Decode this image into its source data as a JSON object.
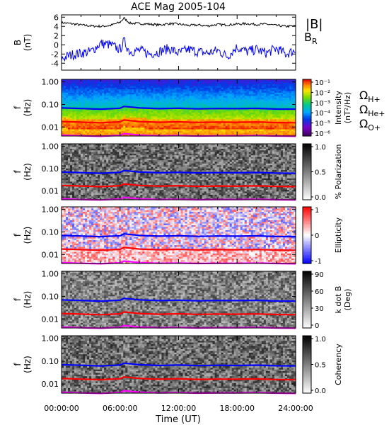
{
  "chart_data": {
    "title": "ACE Mag 2005-104",
    "type": "line",
    "xlabel": "Time (UT)",
    "xlim": [
      0,
      24
    ],
    "xticks": [
      "00:00:00",
      "06:00:00",
      "12:00:00",
      "18:00:00",
      "24:00:00"
    ],
    "panels": [
      {
        "id": "mag",
        "type": "line",
        "ylabel": "B",
        "yunit": "(nT)",
        "ylim": [
          -5.5,
          6.5
        ],
        "yticks": [
          "6",
          "4",
          "2",
          "0",
          "-2",
          "-4"
        ],
        "series": [
          {
            "name": "|B|",
            "color": "#000000",
            "x": [
              0,
              1,
              2,
              3,
              4,
              5,
              6,
              6.4,
              7,
              8,
              9,
              10,
              11,
              12,
              13,
              14,
              15,
              16,
              17,
              18,
              19,
              20,
              21,
              22,
              23,
              24
            ],
            "values": [
              4.8,
              4.6,
              4.3,
              4.1,
              4.0,
              4.2,
              4.9,
              5.8,
              4.7,
              4.6,
              4.5,
              4.3,
              4.6,
              4.5,
              4.2,
              4.3,
              4.1,
              4.4,
              4.3,
              4.5,
              4.6,
              4.4,
              4.5,
              4.2,
              4.0,
              4.1
            ]
          },
          {
            "name": "B",
            "subscript": "R",
            "color": "#0000ff",
            "x": [
              0,
              1,
              2,
              3,
              4,
              5,
              6,
              6.4,
              7,
              8,
              9,
              10,
              11,
              12,
              13,
              14,
              15,
              16,
              17,
              18,
              19,
              20,
              21,
              22,
              23,
              24
            ],
            "values": [
              -3.0,
              -2.2,
              -1.8,
              -1.5,
              0.3,
              0.0,
              -1.0,
              0.8,
              -1.5,
              -1.2,
              -2.0,
              -1.5,
              -0.8,
              -1.8,
              -1.0,
              -1.5,
              -1.8,
              -1.2,
              -2.5,
              -0.5,
              -1.5,
              -1.0,
              -1.8,
              -0.8,
              -2.0,
              -1.2
            ]
          }
        ]
      },
      {
        "id": "power",
        "type": "heatmap",
        "ylabel": "f",
        "yunit": "(Hz)",
        "ylim": [
          0.004,
          1.3
        ],
        "yscale": "log",
        "yticks": [
          "1.00",
          "0.10",
          "0.01"
        ],
        "colorbar": {
          "label": "Intensity",
          "unit": "(nT²/Hz)",
          "scale": "log",
          "ticks": [
            "10⁻¹",
            "10⁻²",
            "10⁻³",
            "10⁻⁴",
            "10⁻⁵",
            "10⁻⁶"
          ],
          "range": [
            1e-06,
            0.3
          ],
          "colormap": "rainbow"
        }
      },
      {
        "id": "polarization",
        "type": "heatmap",
        "ylabel": "f",
        "yunit": "(Hz)",
        "ylim": [
          0.004,
          1.3
        ],
        "yscale": "log",
        "yticks": [
          "1.00",
          "0.10",
          "0.01"
        ],
        "colorbar": {
          "label": "% Polarization",
          "ticks": [
            "1.0",
            "0.5",
            "0.0"
          ],
          "range": [
            0,
            1
          ],
          "colormap": "grey"
        }
      },
      {
        "id": "ellipticity",
        "type": "heatmap",
        "ylabel": "f",
        "yunit": "(Hz)",
        "ylim": [
          0.004,
          1.3
        ],
        "yscale": "log",
        "yticks": [
          "1.00",
          "0.10",
          "0.01"
        ],
        "colorbar": {
          "label": "Ellipticity",
          "ticks": [
            "1",
            "0",
            "-1"
          ],
          "range": [
            -1,
            1
          ],
          "colormap": "blue-white-red"
        }
      },
      {
        "id": "kdotb",
        "type": "heatmap",
        "ylabel": "f",
        "yunit": "(Hz)",
        "ylim": [
          0.004,
          1.3
        ],
        "yscale": "log",
        "yticks": [
          "1.00",
          "0.10",
          "0.01"
        ],
        "colorbar": {
          "label": "k dot B",
          "unit": "(Deg)",
          "ticks": [
            "90",
            "60",
            "30",
            "0"
          ],
          "range": [
            0,
            90
          ],
          "colormap": "grey"
        }
      },
      {
        "id": "coherency",
        "type": "heatmap",
        "ylabel": "f",
        "yunit": "(Hz)",
        "ylim": [
          0.004,
          1.3
        ],
        "yscale": "log",
        "yticks": [
          "1.00",
          "0.10",
          "0.01"
        ],
        "colorbar": {
          "label": "Coherency",
          "ticks": [
            "1.0",
            "0.5",
            "0.0"
          ],
          "range": [
            0,
            1
          ],
          "colormap": "grey"
        }
      }
    ],
    "gyro_lines": [
      {
        "name": "Ω",
        "subscript": "H+",
        "color": "#0000ff",
        "x": [
          0,
          2,
          4,
          6,
          6.4,
          8,
          10,
          12,
          14,
          16,
          18,
          20,
          22,
          24
        ],
        "values": [
          0.07,
          0.066,
          0.062,
          0.068,
          0.082,
          0.07,
          0.065,
          0.068,
          0.064,
          0.066,
          0.065,
          0.067,
          0.063,
          0.062
        ]
      },
      {
        "name": "Ω",
        "subscript": "He+",
        "color": "#ff0000",
        "x": [
          0,
          2,
          4,
          6,
          6.4,
          8,
          10,
          12,
          14,
          16,
          18,
          20,
          22,
          24
        ],
        "values": [
          0.0175,
          0.0165,
          0.0155,
          0.017,
          0.0205,
          0.0175,
          0.0163,
          0.017,
          0.016,
          0.0165,
          0.0163,
          0.0168,
          0.0158,
          0.0155
        ]
      },
      {
        "name": "Ω",
        "subscript": "O+",
        "color": "#ff00ff",
        "x": [
          0,
          2,
          4,
          6,
          6.4,
          8,
          10,
          12,
          14,
          16,
          18,
          20,
          22,
          24
        ],
        "values": [
          0.0044,
          0.0041,
          0.0039,
          0.0043,
          0.0051,
          0.0044,
          0.0041,
          0.0042,
          0.004,
          0.0041,
          0.0041,
          0.0042,
          0.004,
          0.0039
        ]
      }
    ]
  }
}
